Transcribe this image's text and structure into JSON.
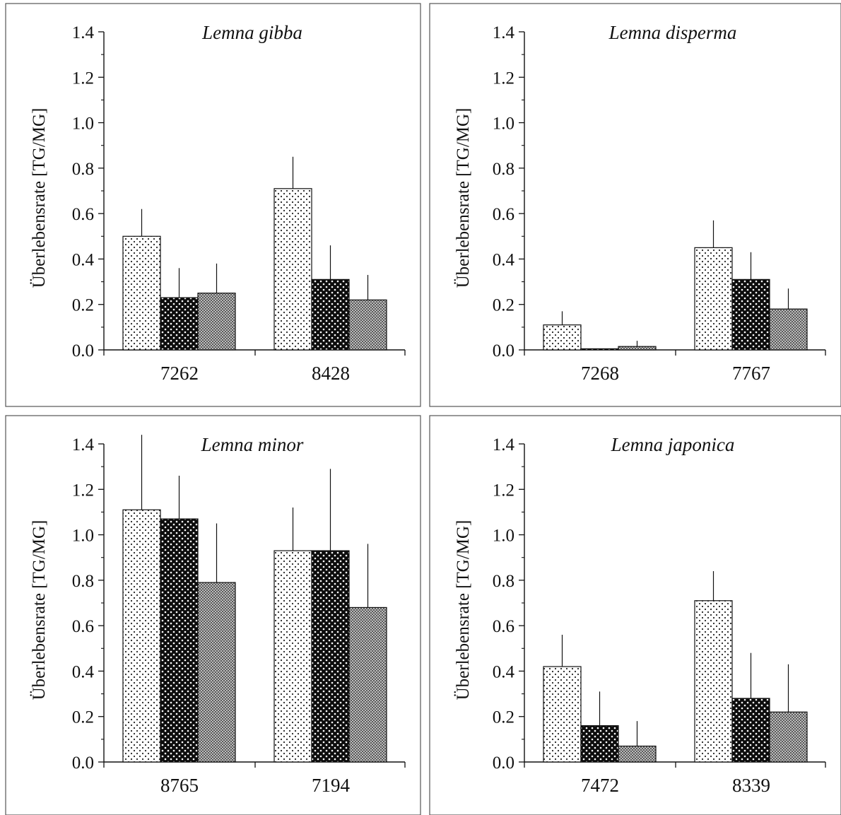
{
  "chart_data": [
    {
      "type": "bar",
      "title": "Lemna gibba",
      "ylabel": "Überlebensrate [TG/MG]",
      "categories": [
        "7262",
        "8428"
      ],
      "ylim": [
        0,
        1.4
      ],
      "yticks": [
        "0.0",
        "0.2",
        "0.4",
        "0.6",
        "0.8",
        "1.0",
        "1.2",
        "1.4"
      ],
      "series": [
        {
          "values": [
            0.5,
            0.71
          ],
          "errors": [
            0.12,
            0.14
          ]
        },
        {
          "values": [
            0.23,
            0.31
          ],
          "errors": [
            0.13,
            0.15
          ]
        },
        {
          "values": [
            0.25,
            0.22
          ],
          "errors": [
            0.13,
            0.11
          ]
        }
      ]
    },
    {
      "type": "bar",
      "title": "Lemna disperma",
      "ylabel": "Überlebensrate [TG/MG]",
      "categories": [
        "7268",
        "7767"
      ],
      "ylim": [
        0,
        1.4
      ],
      "yticks": [
        "0.0",
        "0.2",
        "0.4",
        "0.6",
        "0.8",
        "1.0",
        "1.2",
        "1.4"
      ],
      "series": [
        {
          "values": [
            0.11,
            0.45
          ],
          "errors": [
            0.06,
            0.12
          ]
        },
        {
          "values": [
            0.005,
            0.31
          ],
          "errors": [
            0.0,
            0.12
          ]
        },
        {
          "values": [
            0.015,
            0.18
          ],
          "errors": [
            0.025,
            0.09
          ]
        }
      ]
    },
    {
      "type": "bar",
      "title": "Lemna minor",
      "ylabel": "Überlebensrate [TG/MG]",
      "categories": [
        "8765",
        "7194"
      ],
      "ylim": [
        0,
        1.4
      ],
      "yticks": [
        "0.0",
        "0.2",
        "0.4",
        "0.6",
        "0.8",
        "1.0",
        "1.2",
        "1.4"
      ],
      "series": [
        {
          "values": [
            1.11,
            0.93
          ],
          "errors": [
            0.33,
            0.19
          ]
        },
        {
          "values": [
            1.07,
            0.93
          ],
          "errors": [
            0.19,
            0.36
          ]
        },
        {
          "values": [
            0.79,
            0.68
          ],
          "errors": [
            0.26,
            0.28
          ]
        }
      ]
    },
    {
      "type": "bar",
      "title": "Lemna japonica",
      "ylabel": "Überlebensrate [TG/MG]",
      "categories": [
        "7472",
        "8339"
      ],
      "ylim": [
        0,
        1.4
      ],
      "yticks": [
        "0.0",
        "0.2",
        "0.4",
        "0.6",
        "0.8",
        "1.0",
        "1.2",
        "1.4"
      ],
      "series": [
        {
          "values": [
            0.42,
            0.71
          ],
          "errors": [
            0.14,
            0.13
          ]
        },
        {
          "values": [
            0.16,
            0.28
          ],
          "errors": [
            0.15,
            0.2
          ]
        },
        {
          "values": [
            0.07,
            0.22
          ],
          "errors": [
            0.11,
            0.21
          ]
        }
      ]
    }
  ]
}
